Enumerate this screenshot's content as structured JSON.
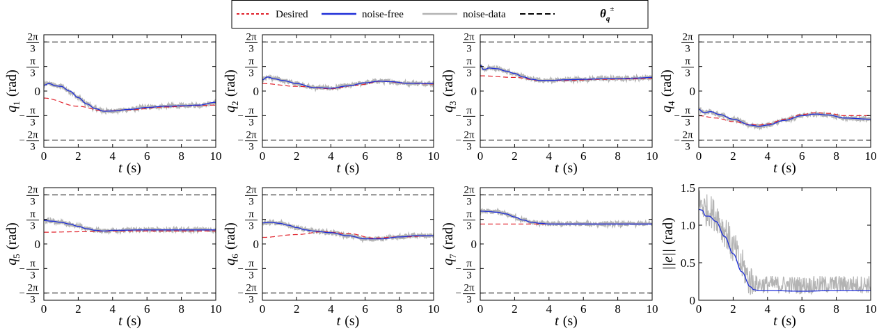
{
  "legend": {
    "items": [
      {
        "label": "Desired",
        "color": "#e0202a",
        "style": "dotted"
      },
      {
        "label": "noise-free",
        "color": "#1f2fd8",
        "style": "solid"
      },
      {
        "label": "noise-data",
        "color": "#b3b3b3",
        "style": "solid"
      },
      {
        "label": "θ",
        "sup": "±",
        "sub": "q",
        "color": "#000000",
        "style": "dashed"
      }
    ]
  },
  "colors": {
    "desired": "#e0202a",
    "noise_free": "#1f2fd8",
    "noise_data": "#b3b3b3",
    "limit": "#000000"
  },
  "chart_data": [
    {
      "type": "line",
      "id": "q1",
      "ylabel_var": "q",
      "ylabel_sub": "1",
      "ylabel_unit": "(rad)",
      "xlabel_var": "t",
      "xlabel_unit": "(s)",
      "xlim": [
        0,
        10
      ],
      "ylim": [
        -2.4,
        2.4
      ],
      "xticks": [
        0,
        2,
        4,
        6,
        8,
        10
      ],
      "yticks": [
        {
          "v": 2.094,
          "num": "2π",
          "den": "3"
        },
        {
          "v": 1.047,
          "num": "π",
          "den": "3"
        },
        {
          "v": 0,
          "text": "0"
        },
        {
          "v": -1.047,
          "sign": "−",
          "num": "π",
          "den": "3"
        },
        {
          "v": -2.094,
          "sign": "−",
          "num": "2π",
          "den": "3"
        }
      ],
      "limits": [
        2.094,
        -2.094
      ],
      "desired": {
        "x": [
          0,
          2,
          3.5,
          5,
          7,
          9,
          10
        ],
        "y": [
          -0.3,
          -0.65,
          -0.85,
          -0.8,
          -0.68,
          -0.62,
          -0.6
        ]
      },
      "noise_free": {
        "x": [
          0,
          0.3,
          0.7,
          1,
          1.5,
          2,
          2.5,
          3,
          3.5,
          4,
          5,
          6,
          7,
          8,
          9,
          10
        ],
        "y": [
          0.25,
          0.32,
          0.22,
          0.2,
          0.0,
          -0.28,
          -0.55,
          -0.75,
          -0.86,
          -0.85,
          -0.78,
          -0.7,
          -0.65,
          -0.63,
          -0.6,
          -0.48
        ]
      },
      "noise_amp": 0.09
    },
    {
      "type": "line",
      "id": "q2",
      "ylabel_var": "q",
      "ylabel_sub": "2",
      "ylabel_unit": "(rad)",
      "xlabel_var": "t",
      "xlabel_unit": "(s)",
      "xlim": [
        0,
        10
      ],
      "ylim": [
        -2.4,
        2.4
      ],
      "xticks": [
        0,
        2,
        4,
        6,
        8,
        10
      ],
      "yticks": [
        {
          "v": 2.094,
          "num": "2π",
          "den": "3"
        },
        {
          "v": 1.047,
          "num": "π",
          "den": "3"
        },
        {
          "v": 0,
          "text": "0"
        },
        {
          "v": -1.047,
          "sign": "−",
          "num": "π",
          "den": "3"
        },
        {
          "v": -2.094,
          "sign": "−",
          "num": "2π",
          "den": "3"
        }
      ],
      "limits": [
        2.094,
        -2.094
      ],
      "desired": {
        "x": [
          0,
          2,
          4,
          5.5,
          7,
          8.5,
          10
        ],
        "y": [
          0.32,
          0.2,
          0.1,
          0.25,
          0.42,
          0.33,
          0.3
        ]
      },
      "noise_free": {
        "x": [
          0,
          0.3,
          0.7,
          1.2,
          2,
          3,
          4,
          5,
          6,
          6.8,
          7.5,
          8.5,
          10
        ],
        "y": [
          0.48,
          0.6,
          0.52,
          0.45,
          0.32,
          0.15,
          0.12,
          0.22,
          0.35,
          0.42,
          0.4,
          0.33,
          0.32
        ]
      },
      "noise_amp": 0.09
    },
    {
      "type": "line",
      "id": "q3",
      "ylabel_var": "q",
      "ylabel_sub": "3",
      "ylabel_unit": "(rad)",
      "xlabel_var": "t",
      "xlabel_unit": "(s)",
      "xlim": [
        0,
        10
      ],
      "ylim": [
        -2.4,
        2.4
      ],
      "xticks": [
        0,
        2,
        4,
        6,
        8,
        10
      ],
      "yticks": [
        {
          "v": 2.094,
          "num": "2π",
          "den": "3"
        },
        {
          "v": 1.047,
          "num": "π",
          "den": "3"
        },
        {
          "v": 0,
          "text": "0"
        },
        {
          "v": -1.047,
          "sign": "−",
          "num": "π",
          "den": "3"
        },
        {
          "v": -2.094,
          "sign": "−",
          "num": "2π",
          "den": "3"
        }
      ],
      "limits": [
        2.094,
        -2.094
      ],
      "desired": {
        "x": [
          0,
          2,
          3.5,
          5,
          7,
          9,
          10
        ],
        "y": [
          0.65,
          0.58,
          0.45,
          0.45,
          0.5,
          0.52,
          0.55
        ]
      },
      "noise_free": {
        "x": [
          0,
          0.2,
          0.5,
          1,
          1.5,
          2,
          2.5,
          3,
          3.5,
          4,
          5,
          6,
          7,
          8,
          9,
          10
        ],
        "y": [
          1.12,
          0.9,
          0.98,
          0.95,
          0.85,
          0.75,
          0.6,
          0.5,
          0.45,
          0.45,
          0.48,
          0.5,
          0.52,
          0.53,
          0.55,
          0.58
        ]
      },
      "noise_amp": 0.09
    },
    {
      "type": "line",
      "id": "q4",
      "ylabel_var": "q",
      "ylabel_sub": "4",
      "ylabel_unit": "(rad)",
      "xlabel_var": "t",
      "xlabel_unit": "(s)",
      "xlim": [
        0,
        10
      ],
      "ylim": [
        -2.4,
        2.4
      ],
      "xticks": [
        0,
        2,
        4,
        6,
        8,
        10
      ],
      "yticks": [
        {
          "v": 2.094,
          "num": "2π",
          "den": "3"
        },
        {
          "v": 1.047,
          "num": "π",
          "den": "3"
        },
        {
          "v": 0,
          "text": "0"
        },
        {
          "v": -1.047,
          "sign": "−",
          "num": "π",
          "den": "3"
        },
        {
          "v": -2.094,
          "sign": "−",
          "num": "2π",
          "den": "3"
        }
      ],
      "limits": [
        2.094,
        -2.094
      ],
      "desired": {
        "x": [
          0,
          1,
          2,
          3,
          3.5,
          4,
          5,
          6,
          6.8,
          7.5,
          8.5,
          10
        ],
        "y": [
          -1.05,
          -1.15,
          -1.3,
          -1.42,
          -1.45,
          -1.4,
          -1.2,
          -1.0,
          -0.92,
          -0.95,
          -1.05,
          -1.05
        ]
      },
      "noise_free": {
        "x": [
          0,
          0.3,
          0.7,
          1.2,
          2,
          3,
          3.5,
          4,
          5,
          6,
          6.8,
          7.5,
          8.5,
          10
        ],
        "y": [
          -0.78,
          -0.92,
          -0.88,
          -1.0,
          -1.2,
          -1.45,
          -1.5,
          -1.45,
          -1.25,
          -1.05,
          -0.98,
          -1.02,
          -1.15,
          -1.2
        ]
      },
      "noise_amp": 0.09
    },
    {
      "type": "line",
      "id": "q5",
      "ylabel_var": "q",
      "ylabel_sub": "5",
      "ylabel_unit": "(rad)",
      "xlabel_var": "t",
      "xlabel_unit": "(s)",
      "xlim": [
        0,
        10
      ],
      "ylim": [
        -2.4,
        2.4
      ],
      "xticks": [
        0,
        2,
        4,
        6,
        8,
        10
      ],
      "yticks": [
        {
          "v": 2.094,
          "num": "2π",
          "den": "3"
        },
        {
          "v": 1.047,
          "num": "π",
          "den": "3"
        },
        {
          "v": 0,
          "text": "0"
        },
        {
          "v": -1.047,
          "sign": "−",
          "num": "π",
          "den": "3"
        },
        {
          "v": -2.094,
          "sign": "−",
          "num": "2π",
          "den": "3"
        }
      ],
      "limits": [
        2.094,
        -2.094
      ],
      "desired": {
        "x": [
          0,
          2,
          4,
          6,
          8,
          10
        ],
        "y": [
          0.5,
          0.52,
          0.55,
          0.55,
          0.55,
          0.55
        ]
      },
      "noise_free": {
        "x": [
          0,
          0.5,
          1,
          1.5,
          2,
          2.5,
          3,
          3.5,
          4,
          6,
          8,
          10
        ],
        "y": [
          1.0,
          0.97,
          0.92,
          0.85,
          0.75,
          0.65,
          0.58,
          0.55,
          0.58,
          0.6,
          0.6,
          0.6
        ]
      },
      "noise_amp": 0.09
    },
    {
      "type": "line",
      "id": "q6",
      "ylabel_var": "q",
      "ylabel_sub": "6",
      "ylabel_unit": "(rad)",
      "xlabel_var": "t",
      "xlabel_unit": "(s)",
      "xlim": [
        0,
        10
      ],
      "ylim": [
        -2.4,
        2.4
      ],
      "xticks": [
        0,
        2,
        4,
        6,
        8,
        10
      ],
      "yticks": [
        {
          "v": 2.094,
          "num": "2π",
          "den": "3"
        },
        {
          "v": 1.047,
          "num": "π",
          "den": "3"
        },
        {
          "v": 0,
          "text": "0"
        },
        {
          "v": -1.047,
          "sign": "−",
          "num": "π",
          "den": "3"
        },
        {
          "v": -2.094,
          "sign": "−",
          "num": "2π",
          "den": "3"
        }
      ],
      "limits": [
        2.094,
        -2.094
      ],
      "desired": {
        "x": [
          0,
          2,
          3.5,
          5,
          6.5,
          8,
          10
        ],
        "y": [
          0.28,
          0.4,
          0.52,
          0.45,
          0.25,
          0.3,
          0.35
        ]
      },
      "noise_free": {
        "x": [
          0,
          0.5,
          1,
          1.5,
          2,
          2.5,
          3,
          4,
          5,
          6,
          7,
          8,
          9,
          10
        ],
        "y": [
          0.9,
          0.92,
          0.88,
          0.8,
          0.7,
          0.6,
          0.55,
          0.48,
          0.35,
          0.22,
          0.22,
          0.3,
          0.35,
          0.35
        ]
      },
      "noise_amp": 0.09
    },
    {
      "type": "line",
      "id": "q7",
      "ylabel_var": "q",
      "ylabel_sub": "7",
      "ylabel_unit": "(rad)",
      "xlabel_var": "t",
      "xlabel_unit": "(s)",
      "xlim": [
        0,
        10
      ],
      "ylim": [
        -2.4,
        2.4
      ],
      "xticks": [
        0,
        2,
        4,
        6,
        8,
        10
      ],
      "yticks": [
        {
          "v": 2.094,
          "num": "2π",
          "den": "3"
        },
        {
          "v": 1.047,
          "num": "π",
          "den": "3"
        },
        {
          "v": 0,
          "text": "0"
        },
        {
          "v": -1.047,
          "sign": "−",
          "num": "π",
          "den": "3"
        },
        {
          "v": -2.094,
          "sign": "−",
          "num": "2π",
          "den": "3"
        }
      ],
      "limits": [
        2.094,
        -2.094
      ],
      "desired": {
        "x": [
          0,
          2,
          4,
          6,
          8,
          10
        ],
        "y": [
          0.85,
          0.85,
          0.85,
          0.85,
          0.85,
          0.85
        ]
      },
      "noise_free": {
        "x": [
          0,
          0.5,
          1,
          1.5,
          2,
          2.5,
          3,
          3.5,
          4,
          6,
          8,
          10
        ],
        "y": [
          1.4,
          1.38,
          1.35,
          1.28,
          1.15,
          1.02,
          0.92,
          0.88,
          0.85,
          0.85,
          0.85,
          0.85
        ]
      },
      "noise_amp": 0.09
    },
    {
      "type": "line",
      "id": "e",
      "ylabel_text": "||e||",
      "ylabel_unit": "(rad)",
      "xlabel_var": "t",
      "xlabel_unit": "(s)",
      "xlim": [
        0,
        10
      ],
      "ylim": [
        0,
        1.5
      ],
      "xticks": [
        0,
        2,
        4,
        6,
        8,
        10
      ],
      "yticks": [
        {
          "v": 1.5,
          "text": "1.5"
        },
        {
          "v": 1.0,
          "text": "1.0"
        },
        {
          "v": 0.5,
          "text": "0.5"
        },
        {
          "v": 0,
          "text": "0"
        }
      ],
      "limits": [],
      "noise_free": {
        "x": [
          0,
          0.2,
          0.4,
          0.6,
          1.0,
          1.5,
          2.0,
          2.5,
          3.0,
          3.2,
          3.5,
          4,
          6,
          8,
          10
        ],
        "y": [
          1.21,
          1.2,
          1.12,
          1.12,
          1.05,
          0.85,
          0.62,
          0.38,
          0.18,
          0.14,
          0.13,
          0.13,
          0.12,
          0.13,
          0.13
        ]
      },
      "noise_data": {
        "base": "noise_free",
        "offset": 0.08,
        "amp": 0.12,
        "amp_early": 0.22
      }
    }
  ]
}
